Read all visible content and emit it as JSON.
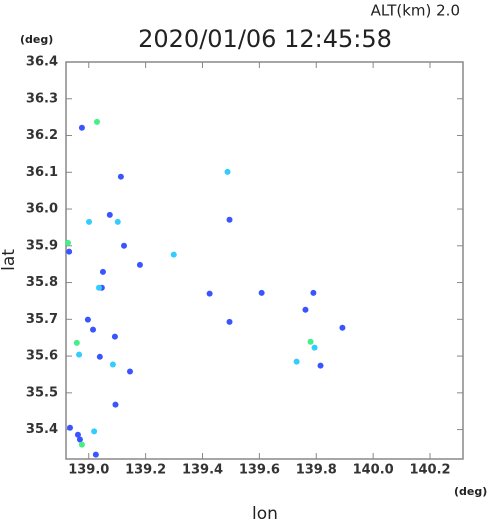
{
  "chart_data": {
    "type": "scatter",
    "title": "2020/01/06 12:45:58",
    "annotation": "ALT(km) 2.0",
    "x_unit": "(deg)",
    "y_unit": "(deg)",
    "x_label": "lon",
    "y_label": "lat",
    "xlim": [
      138.92,
      140.316
    ],
    "ylim": [
      35.32,
      36.4
    ],
    "xticks": [
      {
        "value": 139,
        "label": "139.0"
      },
      139.2,
      139.4,
      139.6,
      139.8,
      {
        "value": 140,
        "label": "140.0"
      },
      140.2
    ],
    "yticks": [
      35.4,
      35.5,
      35.6,
      35.7,
      35.8,
      35.9,
      {
        "value": 36,
        "label": "36.0"
      },
      36.1,
      36.2,
      36.3,
      36.4
    ],
    "series": [
      {
        "color": "#3a55ff",
        "x": [
          138.976,
          139.113,
          139.074,
          139.05,
          139.046,
          138.997,
          139.015,
          139.039,
          139.092,
          139.094,
          138.962,
          138.934,
          138.969,
          139.025,
          139.18,
          139.425,
          139.495,
          139.608,
          139.762,
          139.79,
          139.892,
          139.815,
          139.495,
          139.145,
          138.931,
          139.124
        ],
        "values": [
          36.221,
          36.088,
          35.984,
          35.829,
          35.786,
          35.699,
          35.672,
          35.598,
          35.653,
          35.468,
          35.386,
          35.405,
          35.373,
          35.332,
          35.848,
          35.77,
          35.971,
          35.772,
          35.726,
          35.772,
          35.677,
          35.574,
          35.693,
          35.558,
          35.884,
          35.9
        ]
      },
      {
        "color": "#33ccff",
        "x": [
          139.488,
          139.001,
          139.036,
          138.966,
          139.019,
          139.085,
          139.731,
          139.794,
          139.102,
          139.299
        ],
        "values": [
          36.101,
          35.965,
          35.786,
          35.604,
          35.395,
          35.577,
          35.585,
          35.623,
          35.965,
          35.876
        ]
      },
      {
        "color": "#44ee88",
        "x": [
          139.029,
          138.927,
          138.958,
          139.78,
          138.976
        ],
        "values": [
          36.237,
          35.908,
          35.636,
          35.639,
          35.359
        ]
      }
    ]
  }
}
